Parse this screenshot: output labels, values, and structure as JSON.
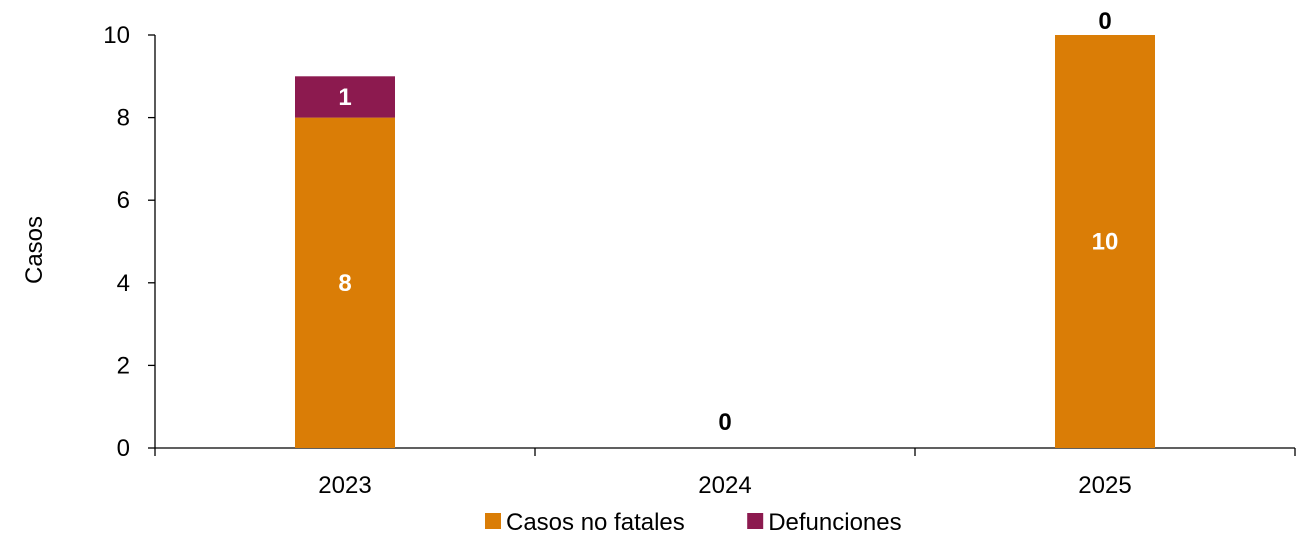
{
  "chart_data": {
    "type": "bar",
    "stacked": true,
    "categories": [
      "2023",
      "2024",
      "2025"
    ],
    "series": [
      {
        "name": "Casos no fatales",
        "values": [
          8,
          0,
          10
        ],
        "color": "#DA7D06"
      },
      {
        "name": "Defunciones",
        "values": [
          1,
          0,
          0
        ],
        "color": "#8C1A4F"
      }
    ],
    "data_labels": {
      "2023": [
        "8",
        "1"
      ],
      "2024": [
        "0"
      ],
      "2025": [
        "10",
        "0"
      ]
    },
    "title": "",
    "xlabel": "",
    "ylabel": "Casos",
    "ylim": [
      0,
      10
    ],
    "yticks": [
      "0",
      "2",
      "4",
      "6",
      "8",
      "10"
    ],
    "legend_position": "bottom",
    "grid": false
  }
}
